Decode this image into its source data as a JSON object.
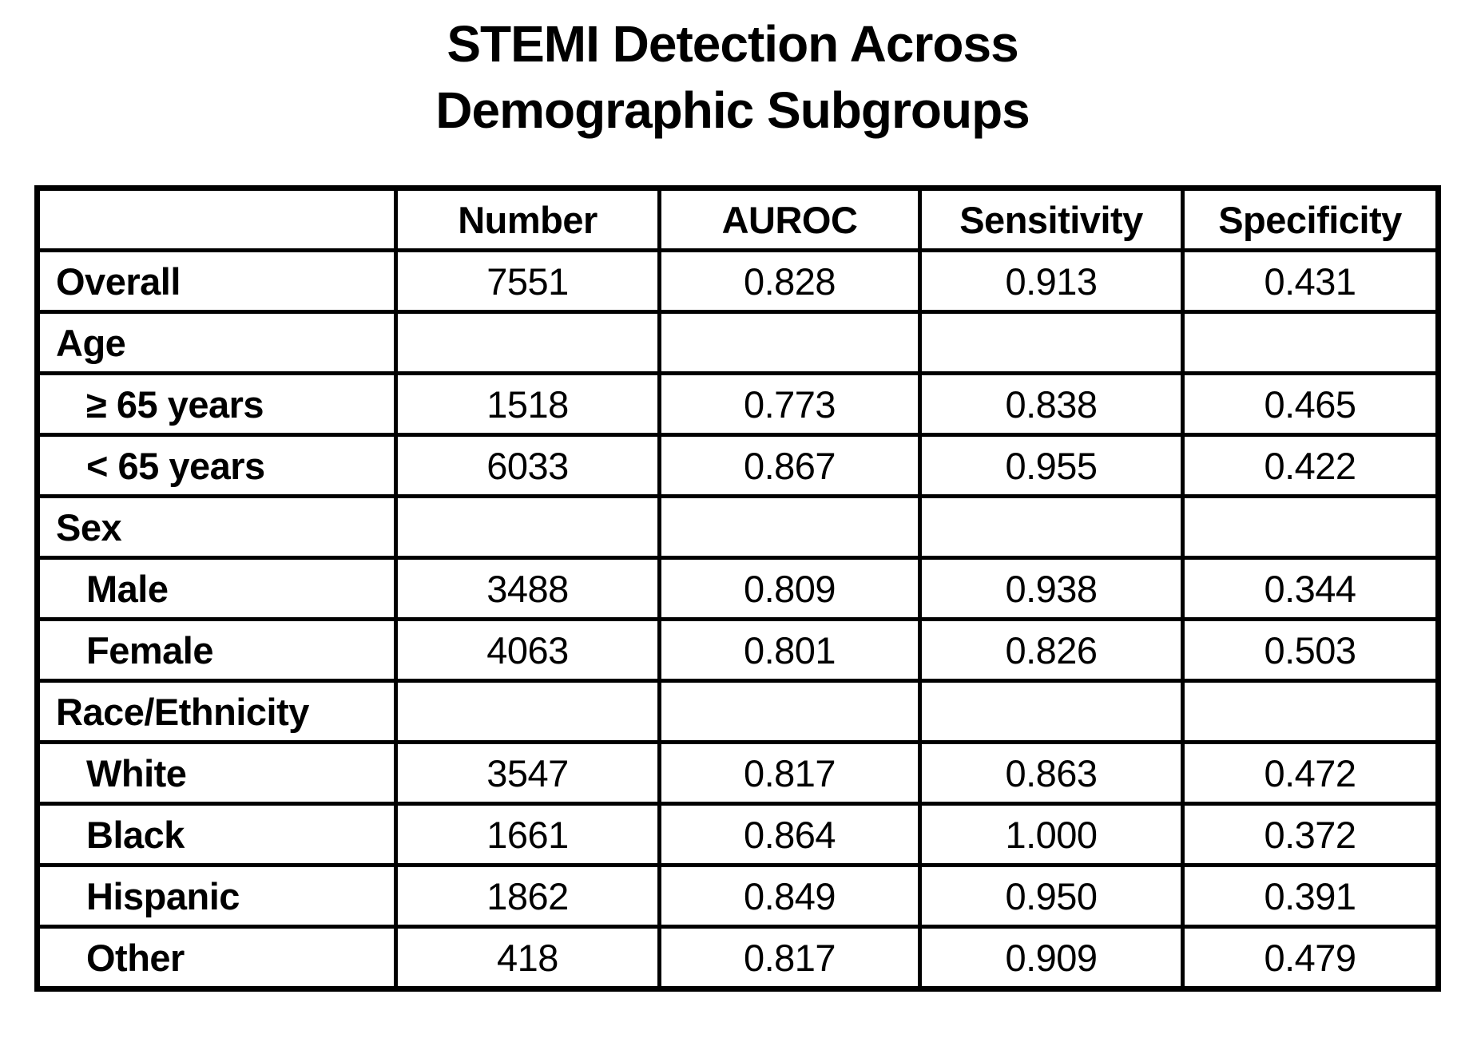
{
  "title": {
    "line1": "STEMI Detection Across",
    "line2": "Demographic Subgroups"
  },
  "chart_data": {
    "type": "table",
    "title": "STEMI Detection Across Demographic Subgroups",
    "columns": [
      "",
      "Number",
      "AUROC",
      "Sensitivity",
      "Specificity"
    ],
    "rows": [
      {
        "label": "Overall",
        "section": false,
        "indent": false,
        "number": "7551",
        "auroc": "0.828",
        "sensitivity": "0.913",
        "specificity": "0.431"
      },
      {
        "label": "Age",
        "section": true
      },
      {
        "label": "≥ 65 years",
        "section": false,
        "indent": true,
        "number": "1518",
        "auroc": "0.773",
        "sensitivity": "0.838",
        "specificity": "0.465"
      },
      {
        "label": "< 65 years",
        "section": false,
        "indent": true,
        "number": "6033",
        "auroc": "0.867",
        "sensitivity": "0.955",
        "specificity": "0.422"
      },
      {
        "label": "Sex",
        "section": true
      },
      {
        "label": "Male",
        "section": false,
        "indent": true,
        "number": "3488",
        "auroc": "0.809",
        "sensitivity": "0.938",
        "specificity": "0.344"
      },
      {
        "label": "Female",
        "section": false,
        "indent": true,
        "number": "4063",
        "auroc": "0.801",
        "sensitivity": "0.826",
        "specificity": "0.503"
      },
      {
        "label": "Race/Ethnicity",
        "section": true
      },
      {
        "label": "White",
        "section": false,
        "indent": true,
        "number": "3547",
        "auroc": "0.817",
        "sensitivity": "0.863",
        "specificity": "0.472"
      },
      {
        "label": "Black",
        "section": false,
        "indent": true,
        "number": "1661",
        "auroc": "0.864",
        "sensitivity": "1.000",
        "specificity": "0.372"
      },
      {
        "label": "Hispanic",
        "section": false,
        "indent": true,
        "number": "1862",
        "auroc": "0.849",
        "sensitivity": "0.950",
        "specificity": "0.391"
      },
      {
        "label": "Other",
        "section": false,
        "indent": true,
        "number": "418",
        "auroc": "0.817",
        "sensitivity": "0.909",
        "specificity": "0.479"
      }
    ],
    "layout": {
      "grid": "on",
      "border_color": "#000000",
      "background": "#ffffff"
    }
  }
}
